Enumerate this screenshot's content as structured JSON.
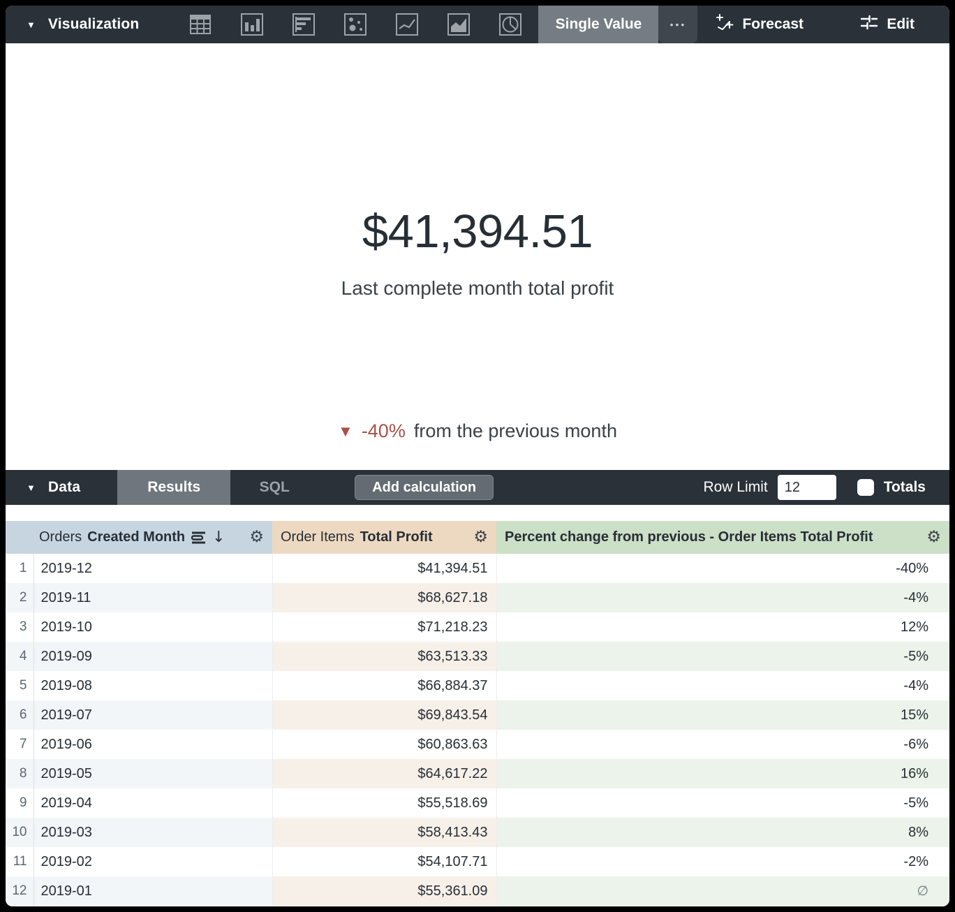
{
  "topbar": {
    "visualization_label": "Visualization",
    "viz_types": [
      "table",
      "bar",
      "horizontal-bar",
      "scatter",
      "line",
      "area",
      "pie"
    ],
    "selected_viz_tab": "Single Value",
    "more_label": "•••",
    "forecast_label": "Forecast",
    "edit_label": "Edit"
  },
  "viz": {
    "value": "$41,394.51",
    "subtitle": "Last complete month total profit",
    "comparison_arrow": "▼",
    "comparison_delta": "-40%",
    "comparison_text": "from the previous month",
    "delta_color": "#A6524A"
  },
  "databar": {
    "data_label": "Data",
    "results_tab": "Results",
    "sql_tab": "SQL",
    "add_calculation_label": "Add calculation",
    "row_limit_label": "Row Limit",
    "row_limit_value": "12",
    "totals_label": "Totals",
    "totals_checked": false
  },
  "table": {
    "columns": [
      {
        "label_regular": "Orders",
        "label_bold": "Created Month",
        "header_bg": "#C7D5E1",
        "sorted": "desc"
      },
      {
        "label_regular": "Order Items",
        "label_bold": "Total Profit",
        "header_bg": "#EDD9C1"
      },
      {
        "label_regular": "",
        "label_bold": "Percent change from previous - Order Items Total Profit",
        "header_bg": "#CCDFC7"
      }
    ],
    "rows": [
      {
        "n": "1",
        "month": "2019-12",
        "profit": "$41,394.51",
        "pct": "-40%"
      },
      {
        "n": "2",
        "month": "2019-11",
        "profit": "$68,627.18",
        "pct": "-4%"
      },
      {
        "n": "3",
        "month": "2019-10",
        "profit": "$71,218.23",
        "pct": "12%"
      },
      {
        "n": "4",
        "month": "2019-09",
        "profit": "$63,513.33",
        "pct": "-5%"
      },
      {
        "n": "5",
        "month": "2019-08",
        "profit": "$66,884.37",
        "pct": "-4%"
      },
      {
        "n": "6",
        "month": "2019-07",
        "profit": "$69,843.54",
        "pct": "15%"
      },
      {
        "n": "7",
        "month": "2019-06",
        "profit": "$60,863.63",
        "pct": "-6%"
      },
      {
        "n": "8",
        "month": "2019-05",
        "profit": "$64,617.22",
        "pct": "16%"
      },
      {
        "n": "9",
        "month": "2019-04",
        "profit": "$55,518.69",
        "pct": "-5%"
      },
      {
        "n": "10",
        "month": "2019-03",
        "profit": "$58,413.43",
        "pct": "8%"
      },
      {
        "n": "11",
        "month": "2019-02",
        "profit": "$54,107.71",
        "pct": "-2%"
      },
      {
        "n": "12",
        "month": "2019-01",
        "profit": "$55,361.09",
        "pct": "∅"
      }
    ]
  }
}
